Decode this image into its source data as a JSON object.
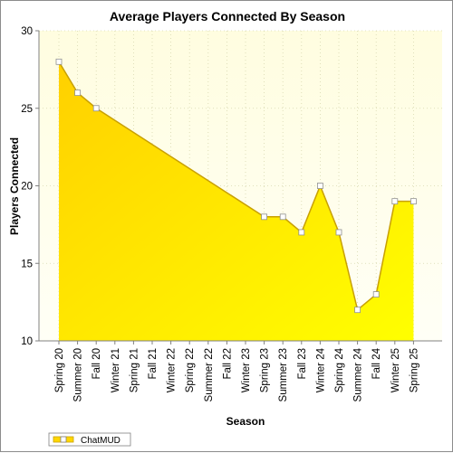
{
  "chart_data": {
    "type": "area",
    "title": "Average Players Connected By Season",
    "xlabel": "Season",
    "ylabel": "Players Connected",
    "ylim": [
      10,
      30
    ],
    "yticks": [
      10,
      15,
      20,
      25,
      30
    ],
    "grid": true,
    "legend": "bottom-left",
    "categories": [
      "Spring 20",
      "Summer 20",
      "Fall 20",
      "Winter 21",
      "Spring 21",
      "Fall 21",
      "Winter 22",
      "Spring 22",
      "Summer 22",
      "Fall 22",
      "Winter 23",
      "Spring 23",
      "Summer 23",
      "Fall 23",
      "Winter 24",
      "Spring 24",
      "Summer 24",
      "Fall 24",
      "Winter 25",
      "Spring 25"
    ],
    "series": [
      {
        "name": "ChatMUD",
        "values": [
          28,
          26,
          25,
          null,
          null,
          null,
          null,
          null,
          null,
          null,
          null,
          18,
          18,
          17,
          20,
          17,
          12,
          13,
          19,
          19
        ],
        "color": "#ffd700",
        "line_color": "#c8a000"
      }
    ],
    "colors": {
      "plot_bg_top": "#fffde0",
      "plot_bg_bottom": "#fffff6",
      "grid": "#d8d8b0"
    }
  }
}
